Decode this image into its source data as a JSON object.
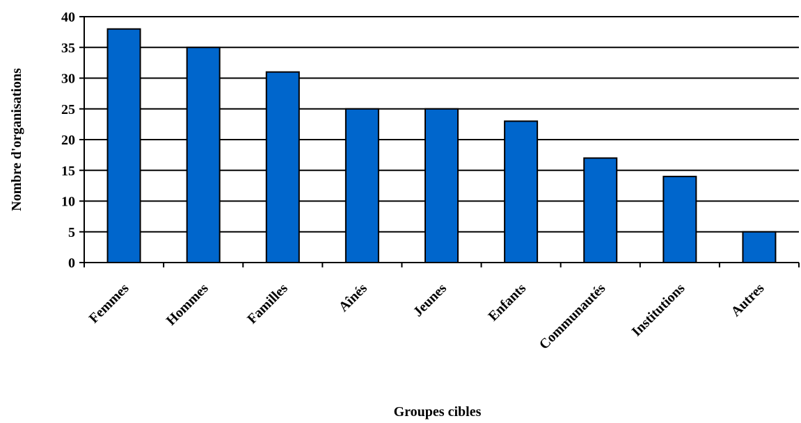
{
  "chart_data": {
    "type": "bar",
    "title": "",
    "xlabel": "Groupes cibles",
    "ylabel": "Nombre d'organisations",
    "categories": [
      "Femmes",
      "Hommes",
      "Familles",
      "Aînés",
      "Jeunes",
      "Enfants",
      "Communautés",
      "Institutions",
      "Autres"
    ],
    "values": [
      38,
      35,
      31,
      25,
      25,
      23,
      17,
      14,
      5
    ],
    "ylim": [
      0,
      40
    ],
    "yticks": [
      0,
      5,
      10,
      15,
      20,
      25,
      30,
      35,
      40
    ],
    "grid": true,
    "legend": "none",
    "bar_color": "#0066CC"
  }
}
